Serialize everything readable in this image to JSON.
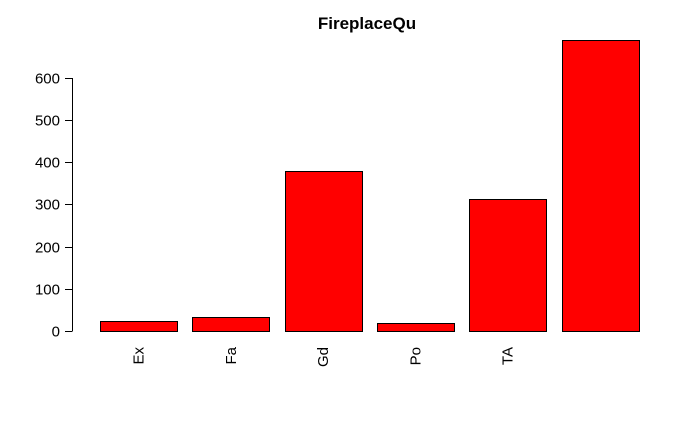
{
  "chart_data": {
    "type": "bar",
    "title": "FireplaceQu",
    "categories": [
      "Ex",
      "Fa",
      "Gd",
      "Po",
      "TA",
      ""
    ],
    "values": [
      24,
      33,
      380,
      20,
      313,
      690
    ],
    "ylim": [
      0,
      690
    ],
    "yticks": [
      0,
      100,
      200,
      300,
      400,
      500,
      600
    ],
    "xlabel": "",
    "ylabel": "",
    "grid": false,
    "legend": "none",
    "bar_color": "#ff0000",
    "bar_border_color": "#000000"
  }
}
